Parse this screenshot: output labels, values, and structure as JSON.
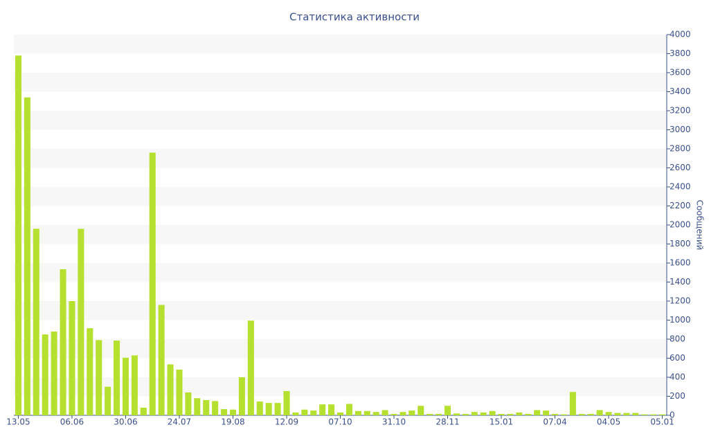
{
  "chart_data": {
    "type": "bar",
    "title": "Статистика активности",
    "y_label": "Сообщений",
    "categories": [
      "13.05",
      null,
      null,
      null,
      null,
      null,
      "06.06",
      null,
      null,
      null,
      null,
      null,
      "30.06",
      null,
      null,
      null,
      null,
      null,
      "24.07",
      null,
      null,
      null,
      null,
      null,
      "19.08",
      null,
      null,
      null,
      null,
      null,
      "12.09",
      null,
      null,
      null,
      null,
      null,
      "07.10",
      null,
      null,
      null,
      null,
      null,
      "31.10",
      null,
      null,
      null,
      null,
      null,
      "28.11",
      null,
      null,
      null,
      null,
      null,
      "15.01",
      null,
      null,
      null,
      null,
      null,
      "07.04",
      null,
      null,
      null,
      null,
      null,
      "04.05",
      null,
      null,
      null,
      null,
      null,
      "05.01"
    ],
    "values": [
      3780,
      3340,
      1960,
      850,
      880,
      1535,
      1200,
      1960,
      915,
      790,
      300,
      785,
      605,
      630,
      80,
      2760,
      1160,
      535,
      480,
      240,
      180,
      160,
      150,
      65,
      60,
      400,
      995,
      145,
      130,
      130,
      255,
      30,
      60,
      50,
      115,
      115,
      30,
      120,
      45,
      45,
      35,
      55,
      15,
      35,
      50,
      100,
      15,
      15,
      100,
      20,
      15,
      35,
      30,
      45,
      15,
      15,
      30,
      15,
      55,
      50,
      15,
      10,
      245,
      15,
      15,
      55,
      35,
      25,
      25,
      25,
      10,
      10,
      10
    ],
    "color": "#b5e02f",
    "ylim": [
      0,
      4000
    ],
    "yticks": [
      0,
      200,
      400,
      600,
      800,
      1000,
      1200,
      1400,
      1600,
      1800,
      2000,
      2200,
      2400,
      2600,
      2800,
      3000,
      3200,
      3400,
      3600,
      3800,
      4000
    ],
    "grid": true
  }
}
